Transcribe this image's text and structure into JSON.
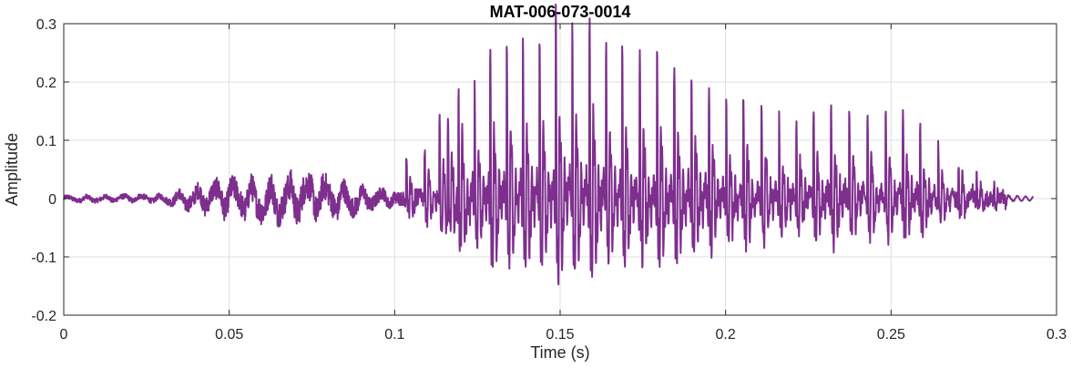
{
  "chart_data": {
    "type": "line",
    "title": "MAT-006-073-0014",
    "xlabel": "Time (s)",
    "ylabel": "Amplitude",
    "xlim": [
      0,
      0.3
    ],
    "ylim": [
      -0.2,
      0.3
    ],
    "xticks": [
      0,
      0.05,
      0.1,
      0.15,
      0.2,
      0.25,
      0.3
    ],
    "xtick_labels": [
      "0",
      "0.05",
      "0.1",
      "0.15",
      "0.2",
      "0.25",
      "0.3"
    ],
    "yticks": [
      -0.2,
      -0.1,
      0,
      0.1,
      0.2,
      0.3
    ],
    "ytick_labels": [
      "-0.2",
      "-0.1",
      "0",
      "0.1",
      "0.2",
      "0.3"
    ],
    "grid": true,
    "legend": "none",
    "color": "#7E2F8E",
    "signal_end": 0.293,
    "series": [
      {
        "name": "waveform",
        "voiced_pulses": {
          "t": [
            0.1035,
            0.109,
            0.1135,
            0.116,
            0.1192,
            0.1241,
            0.1288,
            0.1338,
            0.1387,
            0.1437,
            0.1486,
            0.1536,
            0.1588,
            0.1638,
            0.1687,
            0.174,
            0.1792,
            0.1844,
            0.1896,
            0.1949,
            0.2001,
            0.2053,
            0.2108,
            0.2161,
            0.2213,
            0.2265,
            0.2318,
            0.2373,
            0.2428,
            0.2483,
            0.2535,
            0.2587,
            0.2642,
            0.2703,
            0.2758,
            0.281
          ],
          "peak": [
            0.06,
            0.075,
            0.11,
            0.115,
            0.152,
            0.167,
            0.211,
            0.242,
            0.237,
            0.242,
            0.278,
            0.27,
            0.259,
            0.24,
            0.223,
            0.197,
            0.217,
            0.197,
            0.181,
            0.15,
            0.137,
            0.15,
            0.141,
            0.114,
            0.114,
            0.127,
            0.137,
            0.133,
            0.13,
            0.134,
            0.13,
            0.102,
            0.08,
            0.059,
            0.036,
            0.016
          ]
        },
        "unvoiced_envelope": [
          [
            0,
            0.006
          ],
          [
            0.03,
            0.008
          ],
          [
            0.04,
            0.025
          ],
          [
            0.05,
            0.035
          ],
          [
            0.06,
            0.04
          ],
          [
            0.07,
            0.045
          ],
          [
            0.08,
            0.04
          ],
          [
            0.09,
            0.025
          ],
          [
            0.1,
            0.015
          ]
        ]
      }
    ]
  }
}
